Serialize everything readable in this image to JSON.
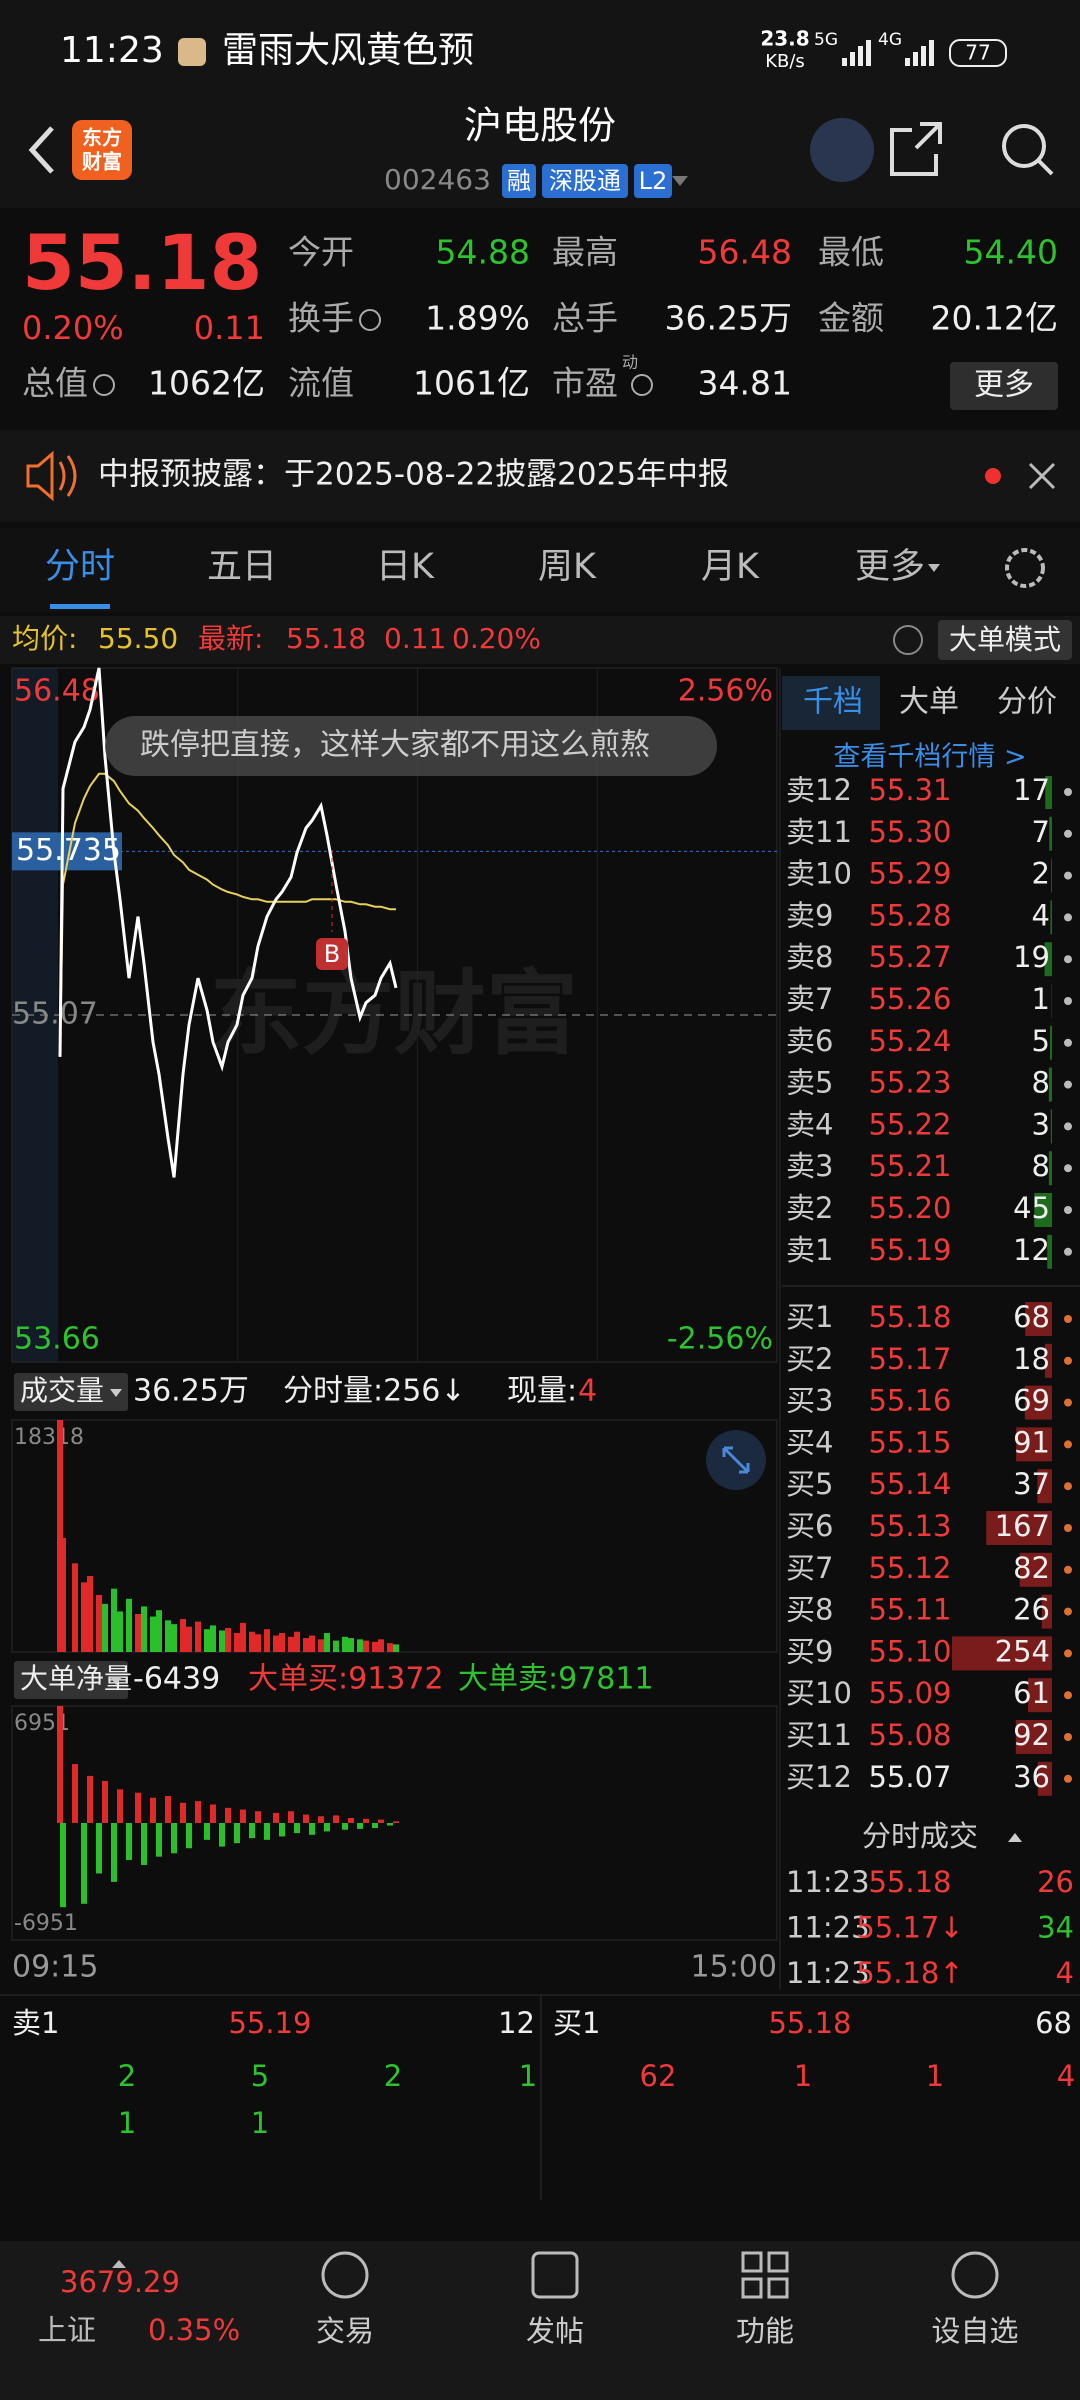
{
  "status_bar": {
    "time": "11:23",
    "notification": "雷雨大风黄色预",
    "net_speed": "23.8",
    "net_unit": "KB/s",
    "signal1": "5G",
    "signal2": "4G",
    "battery": "77"
  },
  "header": {
    "logo": [
      "东方",
      "财富"
    ],
    "title": "沪电股份",
    "code": "002463",
    "badges": [
      "融",
      "深股通",
      "L2"
    ]
  },
  "quote": {
    "price": "55.18",
    "change_pct": "0.20%",
    "change": "0.11",
    "more": "更多",
    "fields": [
      {
        "label": "今开",
        "value": "54.88",
        "color": "#2ec22e"
      },
      {
        "label": "最高",
        "value": "56.48",
        "color": "#f03a3a"
      },
      {
        "label": "最低",
        "value": "54.40",
        "color": "#2ec22e"
      },
      {
        "label": "换手",
        "value": "1.89%",
        "color": "#eeeeee"
      },
      {
        "label": "总手",
        "value": "36.25万",
        "color": "#eeeeee"
      },
      {
        "label": "金额",
        "value": "20.12亿",
        "color": "#eeeeee"
      },
      {
        "label": "总值",
        "value": "1062亿",
        "color": "#eeeeee"
      },
      {
        "label": "流值",
        "value": "1061亿",
        "color": "#eeeeee"
      },
      {
        "label": "市盈",
        "sup": "动",
        "value": "34.81",
        "color": "#eeeeee"
      }
    ]
  },
  "notice": {
    "text": "中报预披露：于2025-08-22披露2025年中报"
  },
  "tabs": [
    "分时",
    "五日",
    "日K",
    "周K",
    "月K",
    "更多"
  ],
  "info_line": {
    "avg_label": "均价:",
    "avg": "55.50",
    "latest_label": "最新:",
    "latest": "55.18",
    "change": "0.11",
    "change_pct": "0.20%",
    "mode": "大单模式"
  },
  "comment": "跌停把直接，这样大家都不用这么煎熬",
  "watermark": "东方财富",
  "chart_data": [
    {
      "type": "line",
      "buy_marker": "B",
      "ref": 55.07,
      "cursor": 55.735,
      "x": [
        "09:31",
        "09:32",
        "09:36",
        "09:39",
        "09:41",
        "09:44",
        "09:46",
        "09:49",
        "09:51",
        "09:54",
        "09:57",
        "09:59",
        "10:02",
        "10:04",
        "10:07",
        "10:09",
        "10:12",
        "10:14",
        "10:17",
        "10:20",
        "10:22",
        "10:25",
        "10:27",
        "10:30",
        "10:32",
        "10:35",
        "10:37",
        "10:40",
        "10:43",
        "10:45",
        "10:48",
        "10:50",
        "10:53",
        "10:55",
        "10:58",
        "11:00",
        "11:03",
        "11:06",
        "11:08",
        "11:11",
        "11:13",
        "11:16",
        "11:18",
        "11:21",
        "11:23"
      ],
      "series": [
        {
          "color": "#ffffff",
          "values": [
            54.9,
            55.99,
            56.18,
            56.24,
            56.31,
            56.48,
            56.12,
            55.73,
            55.54,
            55.22,
            55.47,
            55.28,
            54.96,
            54.83,
            54.57,
            54.41,
            54.83,
            55.03,
            55.22,
            55.09,
            54.96,
            54.86,
            54.96,
            55.03,
            55.15,
            55.22,
            55.35,
            55.47,
            55.54,
            55.57,
            55.63,
            55.73,
            55.83,
            55.86,
            55.92,
            55.8,
            55.6,
            55.41,
            55.22,
            55.06,
            55.12,
            55.15,
            55.22,
            55.28,
            55.18
          ]
        },
        {
          "color": "#e6d25a",
          "values": [
            54.9,
            55.6,
            55.85,
            55.95,
            56.0,
            56.05,
            56.05,
            56.02,
            55.98,
            55.93,
            55.9,
            55.87,
            55.83,
            55.8,
            55.76,
            55.72,
            55.69,
            55.66,
            55.64,
            55.62,
            55.6,
            55.58,
            55.57,
            55.56,
            55.55,
            55.54,
            55.54,
            55.53,
            55.53,
            55.53,
            55.53,
            55.53,
            55.53,
            55.54,
            55.54,
            55.54,
            55.54,
            55.53,
            55.53,
            55.52,
            55.52,
            55.51,
            55.51,
            55.5,
            55.5
          ]
        }
      ],
      "xlim": [
        "09:15",
        "15:00"
      ],
      "ylim": [
        53.66,
        56.48
      ],
      "yticks": [
        56.48,
        53.66
      ],
      "y2lim": [
        -2.56,
        2.56
      ],
      "y2ticks": [
        {
          "value": 2.56,
          "label": "2.56%"
        },
        {
          "value": -2.56,
          "label": "-2.56%"
        }
      ]
    },
    {
      "type": "bar",
      "title": "成交量",
      "total": "36.25万",
      "per_minute": "分时量:256↓",
      "current_label": "现量:",
      "current": "4",
      "x": [
        "09:31",
        "09:32",
        "09:36",
        "09:39",
        "09:41",
        "09:44",
        "09:46",
        "09:49",
        "09:51",
        "09:54",
        "09:57",
        "09:59",
        "10:02",
        "10:04",
        "10:07",
        "10:09",
        "10:12",
        "10:14",
        "10:17",
        "10:20",
        "10:22",
        "10:25",
        "10:27",
        "10:30",
        "10:32",
        "10:35",
        "10:37",
        "10:40",
        "10:43",
        "10:45",
        "10:48",
        "10:50",
        "10:53",
        "10:55",
        "10:58",
        "11:00",
        "11:03",
        "11:06",
        "11:08",
        "11:11",
        "11:13",
        "11:16",
        "11:18",
        "11:21",
        "11:23"
      ],
      "values": [
        18318,
        9000,
        7000,
        5500,
        6000,
        4500,
        3800,
        5000,
        3200,
        4200,
        3000,
        3600,
        2800,
        3300,
        2500,
        2200,
        2600,
        2000,
        2400,
        1800,
        2100,
        1700,
        1900,
        1500,
        2300,
        1600,
        1400,
        1800,
        1300,
        1500,
        1200,
        1600,
        1100,
        1300,
        1000,
        1500,
        900,
        1200,
        1100,
        1000,
        900,
        800,
        1000,
        700,
        600
      ],
      "bar_colors": [
        "#e02a2a",
        "#e02a2a",
        "#e02a2a",
        "#e02a2a",
        "#e02a2a",
        "#e02a2a",
        "#2bc02b",
        "#2bc02b",
        "#2bc02b",
        "#2bc02b",
        "#e02a2a",
        "#2bc02b",
        "#2bc02b",
        "#2bc02b",
        "#2bc02b",
        "#2bc02b",
        "#e02a2a",
        "#e02a2a",
        "#e02a2a",
        "#2bc02b",
        "#2bc02b",
        "#2bc02b",
        "#e02a2a",
        "#e02a2a",
        "#e02a2a",
        "#e02a2a",
        "#e02a2a",
        "#e02a2a",
        "#e02a2a",
        "#e02a2a",
        "#e02a2a",
        "#e02a2a",
        "#e02a2a",
        "#e02a2a",
        "#e02a2a",
        "#2bc02b",
        "#2bc02b",
        "#2bc02b",
        "#2bc02b",
        "#2bc02b",
        "#e02a2a",
        "#e02a2a",
        "#e02a2a",
        "#e02a2a",
        "#2bc02b"
      ],
      "xlim": [
        "09:15",
        "15:00"
      ],
      "ylim": [
        0,
        18318
      ],
      "yticks": [
        18318
      ]
    },
    {
      "type": "bar",
      "title": "大单净量",
      "total": "-6439",
      "buy": "大单买:91372",
      "sell": "大单卖:97811",
      "pos_color": "#e02a2a",
      "neg_color": "#2bc02b",
      "x": [
        "09:31",
        "09:32",
        "09:36",
        "09:39",
        "09:41",
        "09:44",
        "09:46",
        "09:49",
        "09:51",
        "09:54",
        "09:57",
        "09:59",
        "10:02",
        "10:04",
        "10:07",
        "10:09",
        "10:12",
        "10:14",
        "10:17",
        "10:20",
        "10:22",
        "10:25",
        "10:27",
        "10:30",
        "10:32",
        "10:35",
        "10:37",
        "10:40",
        "10:43",
        "10:45",
        "10:48",
        "10:50",
        "10:53",
        "10:55",
        "10:58",
        "11:00",
        "11:03",
        "11:06",
        "11:08",
        "11:11",
        "11:13",
        "11:16",
        "11:18",
        "11:21",
        "11:23"
      ],
      "values": [
        6951,
        -5000,
        3500,
        -4800,
        2800,
        -3000,
        2500,
        -3500,
        2000,
        -2200,
        1800,
        -2500,
        1500,
        -2000,
        1600,
        -1800,
        1200,
        -1500,
        1300,
        -1000,
        1100,
        -1400,
        900,
        -1200,
        800,
        -900,
        700,
        -1000,
        600,
        -800,
        700,
        -600,
        500,
        -700,
        400,
        -500,
        450,
        -400,
        300,
        -350,
        250,
        -300,
        200,
        -150,
        100
      ],
      "xlim": [
        "09:15",
        "15:00"
      ],
      "xticks": [
        "09:15",
        "15:00"
      ],
      "ylim": [
        -6951,
        6951
      ],
      "yticks": [
        6951,
        -6951
      ]
    }
  ],
  "order_book": {
    "tabs": [
      "千档",
      "大单",
      "分价"
    ],
    "link": "查看千档行情 >",
    "ref_price": "55.07",
    "asks": [
      {
        "label": "卖12",
        "price": "55.31",
        "qty": 17
      },
      {
        "label": "卖11",
        "price": "55.30",
        "qty": 7
      },
      {
        "label": "卖10",
        "price": "55.29",
        "qty": 2
      },
      {
        "label": "卖9",
        "price": "55.28",
        "qty": 4
      },
      {
        "label": "卖8",
        "price": "55.27",
        "qty": 19
      },
      {
        "label": "卖7",
        "price": "55.26",
        "qty": 1
      },
      {
        "label": "卖6",
        "price": "55.24",
        "qty": 5
      },
      {
        "label": "卖5",
        "price": "55.23",
        "qty": 8
      },
      {
        "label": "卖4",
        "price": "55.22",
        "qty": 3
      },
      {
        "label": "卖3",
        "price": "55.21",
        "qty": 8
      },
      {
        "label": "卖2",
        "price": "55.20",
        "qty": 45
      },
      {
        "label": "卖1",
        "price": "55.19",
        "qty": 12
      }
    ],
    "bids": [
      {
        "label": "买1",
        "price": "55.18",
        "qty": 68
      },
      {
        "label": "买2",
        "price": "55.17",
        "qty": 18
      },
      {
        "label": "买3",
        "price": "55.16",
        "qty": 69
      },
      {
        "label": "买4",
        "price": "55.15",
        "qty": 91
      },
      {
        "label": "买5",
        "price": "55.14",
        "qty": 37
      },
      {
        "label": "买6",
        "price": "55.13",
        "qty": 167
      },
      {
        "label": "买7",
        "price": "55.12",
        "qty": 82
      },
      {
        "label": "买8",
        "price": "55.11",
        "qty": 26
      },
      {
        "label": "买9",
        "price": "55.10",
        "qty": 254
      },
      {
        "label": "买10",
        "price": "55.09",
        "qty": 61
      },
      {
        "label": "买11",
        "price": "55.08",
        "qty": 92
      },
      {
        "label": "买12",
        "price": "55.07",
        "qty": 36
      }
    ],
    "trades_title": "分时成交",
    "trades": [
      {
        "time": "11:23",
        "price": "55.18",
        "qty": "26",
        "color": "#f03a3a"
      },
      {
        "time": "11:23",
        "price": "55.17↓",
        "qty": "34",
        "color": "#2ec22e"
      },
      {
        "time": "11:23",
        "price": "55.18↑",
        "qty": "4",
        "color": "#f03a3a"
      }
    ]
  },
  "level1": {
    "ask": {
      "label": "卖1",
      "price": "55.19",
      "qty": "12"
    },
    "bid": {
      "label": "买1",
      "price": "55.18",
      "qty": "68"
    },
    "ask_orders": [
      [
        "2",
        "5",
        "2",
        "1"
      ],
      [
        "1",
        "1"
      ]
    ],
    "bid_orders": [
      [
        "62",
        "1",
        "1",
        "4"
      ]
    ]
  },
  "nav": {
    "index_value": "3679.29",
    "index_name": "上证",
    "index_change": "0.35%",
    "items": [
      "交易",
      "发帖",
      "功能",
      "设自选"
    ]
  }
}
